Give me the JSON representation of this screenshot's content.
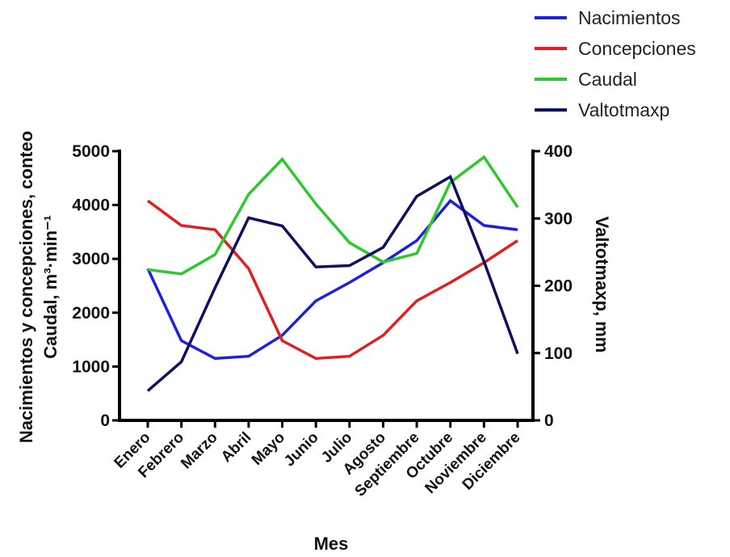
{
  "chart_data": {
    "type": "line",
    "categories": [
      "Enero",
      "Febrero",
      "Marzo",
      "Abril",
      "Mayo",
      "Junio",
      "Julio",
      "Agosto",
      "Septiembre",
      "Octubre",
      "Noviembre",
      "Diciembre"
    ],
    "xlabel": "Mes",
    "ylabel_left_line1": "Nacimientos y concepciones, conteo",
    "ylabel_left_line2": "Caudal, m³·min⁻¹",
    "ylabel_right": "Valtotmaxp, mm",
    "ylim_left": [
      0,
      5000
    ],
    "ylim_right": [
      0,
      400
    ],
    "yticks_left": [
      "0",
      "1000",
      "2000",
      "3000",
      "4000",
      "5000"
    ],
    "yticks_right": [
      "0",
      "100",
      "200",
      "300",
      "400"
    ],
    "grid": false,
    "legend_position": "top-right",
    "series": [
      {
        "name": "Nacimientos",
        "axis": "left",
        "color": "#1f1fe0",
        "values": [
          2820,
          1480,
          1150,
          1190,
          1580,
          2220,
          2560,
          2930,
          3340,
          4080,
          3620,
          3540
        ]
      },
      {
        "name": "Concepciones",
        "axis": "left",
        "color": "#e02020",
        "values": [
          4080,
          3620,
          3540,
          2820,
          1480,
          1150,
          1190,
          1580,
          2220,
          2560,
          2930,
          3340
        ]
      },
      {
        "name": "Caudal",
        "axis": "left",
        "color": "#2ec82e",
        "values": [
          2800,
          2720,
          3080,
          4200,
          4850,
          4020,
          3300,
          2940,
          3100,
          4420,
          4890,
          3960
        ]
      },
      {
        "name": "Valtotmaxp",
        "axis": "right",
        "color": "#101060",
        "values": [
          44,
          87,
          197,
          301,
          289,
          228,
          230,
          257,
          333,
          362,
          236,
          99
        ]
      }
    ]
  }
}
